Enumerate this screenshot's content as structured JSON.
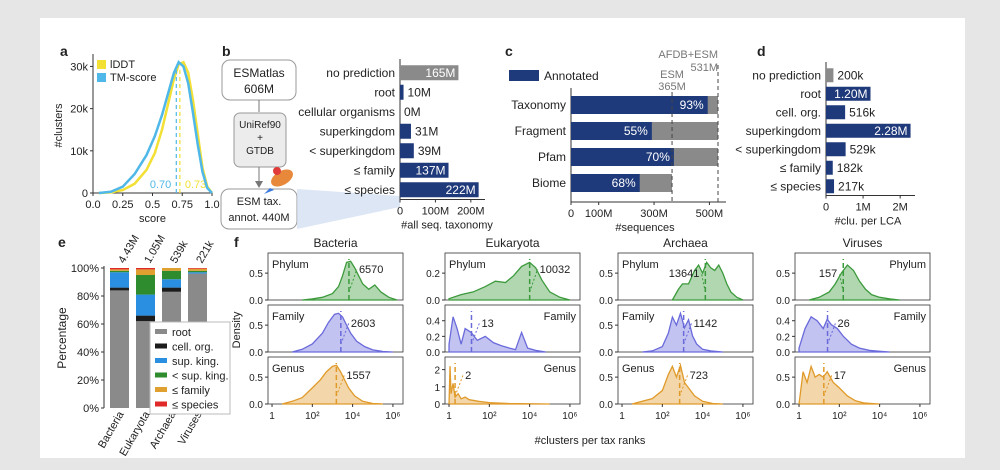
{
  "panel_letters": {
    "a": "a",
    "b": "b",
    "c": "c",
    "d": "d",
    "e": "e",
    "f": "f"
  },
  "colors": {
    "lddt": "#f2e034",
    "tm": "#4fb8e8",
    "navy": "#1f3a7a",
    "grey": "#8a8a8a",
    "green": "#3c9a3c",
    "purple": "#6a6adb",
    "orange": "#e09a2a",
    "root": "#8a8a8a",
    "cellorg": "#1c1c1c",
    "supking": "#2a8fe0",
    "ltsupking": "#2e8b2e",
    "family": "#e0a030",
    "species": "#e02a2a"
  },
  "chart_data": [
    {
      "id": "a",
      "type": "line",
      "title": "",
      "xlabel": "score",
      "ylabel": "#clusters",
      "xlim": [
        0,
        1
      ],
      "ylim": [
        0,
        32000
      ],
      "xticks": [
        "0.0",
        "0.25",
        "0.5",
        "0.75",
        "1.0"
      ],
      "yticks": [
        "0",
        "10k",
        "20k",
        "30k"
      ],
      "series": [
        {
          "name": "lDDT",
          "color_key": "lddt",
          "median": 0.73,
          "median_label": "0.73",
          "x": [
            0.05,
            0.15,
            0.25,
            0.35,
            0.45,
            0.52,
            0.58,
            0.63,
            0.68,
            0.72,
            0.76,
            0.8,
            0.84,
            0.88,
            0.92,
            0.96,
            1.0
          ],
          "y": [
            0,
            150,
            700,
            2200,
            5500,
            9500,
            15000,
            21000,
            27000,
            30500,
            31000,
            28500,
            22000,
            14000,
            6000,
            1500,
            0
          ]
        },
        {
          "name": "TM-score",
          "color_key": "tm",
          "median": 0.7,
          "median_label": "0.70",
          "x": [
            0.05,
            0.15,
            0.25,
            0.35,
            0.45,
            0.52,
            0.58,
            0.63,
            0.68,
            0.72,
            0.76,
            0.8,
            0.84,
            0.88,
            0.92,
            0.96,
            1.0
          ],
          "y": [
            0,
            300,
            1500,
            4500,
            9000,
            13500,
            18500,
            23500,
            28500,
            31000,
            30000,
            26000,
            19000,
            11500,
            5000,
            1200,
            0
          ]
        }
      ]
    },
    {
      "id": "b",
      "type": "bar",
      "title": "",
      "xlabel": "#all seq. taxonomy",
      "xlim": [
        0,
        240000000
      ],
      "xticks": [
        "0",
        "100M",
        "200M"
      ],
      "categories": [
        "no prediction",
        "root",
        "cellular organisms",
        "superkingdom",
        "< superkingdom",
        "≤ family",
        "≤ species"
      ],
      "values": [
        165000000,
        10000000,
        0,
        31000000,
        39000000,
        137000000,
        222000000
      ],
      "value_labels": [
        "165M",
        "10M",
        "0M",
        "31M",
        "39M",
        "137M",
        "222M"
      ],
      "bar_color_keys": [
        "grey",
        "navy",
        "navy",
        "navy",
        "navy",
        "navy",
        "navy"
      ],
      "flowchart": {
        "top_label": "ESMatlas",
        "top_value": "606M",
        "mid_label1": "UniRef90",
        "mid_plus": "+",
        "mid_label2": "GTDB",
        "bottom_label": "ESM tax.",
        "bottom_value": "annot. 440M"
      }
    },
    {
      "id": "c",
      "type": "bar",
      "title": "",
      "xlabel": "#sequences",
      "xlim": [
        0,
        560000000
      ],
      "xticks": [
        "0",
        "100M",
        "300M",
        "500M"
      ],
      "legend": "Annotated",
      "categories": [
        "Taxonomy",
        "Fragment",
        "Pfam",
        "Biome"
      ],
      "totals": [
        531000000,
        531000000,
        531000000,
        365000000
      ],
      "annotated_pct": [
        93,
        55,
        70,
        68
      ],
      "value_labels": [
        "93%",
        "55%",
        "70%",
        "68%"
      ],
      "reference_lines": [
        {
          "label": "ESM",
          "value_label": "365M",
          "value": 365000000
        },
        {
          "label": "AFDB+ESM",
          "value_label": "531M",
          "value": 531000000
        }
      ]
    },
    {
      "id": "d",
      "type": "bar",
      "title": "",
      "xlabel": "#clu. per LCA",
      "xlim": [
        0,
        2400000
      ],
      "xticks": [
        "0",
        "1M",
        "2M"
      ],
      "categories": [
        "no prediction",
        "root",
        "cell. org.",
        "superkingdom",
        "< superkingdom",
        "≤ family",
        "≤ species"
      ],
      "values": [
        200000,
        1200000,
        516000,
        2280000,
        529000,
        182000,
        217000
      ],
      "value_labels": [
        "200k",
        "1.20M",
        "516k",
        "2.28M",
        "529k",
        "182k",
        "217k"
      ],
      "bar_color_keys": [
        "grey",
        "navy",
        "navy",
        "navy",
        "navy",
        "navy",
        "navy"
      ]
    },
    {
      "id": "e",
      "type": "bar",
      "title": "",
      "ylabel": "Percentage",
      "ylim": [
        0,
        100
      ],
      "yticks": [
        "0%",
        "20%",
        "40%",
        "60%",
        "80%",
        "100%"
      ],
      "categories": [
        "Bacteria",
        "Eukaryota",
        "Archaea",
        "Viruses"
      ],
      "totals": [
        "4.43M",
        "1.05M",
        "539k",
        "221k"
      ],
      "series": [
        {
          "name": "root",
          "color_key": "root",
          "values": [
            84,
            62,
            83,
            96
          ]
        },
        {
          "name": "cell. org.",
          "color_key": "cellorg",
          "values": [
            2,
            4,
            3,
            0
          ]
        },
        {
          "name": "sup. king.",
          "color_key": "supking",
          "values": [
            11,
            15,
            6,
            1
          ]
        },
        {
          "name": "< sup. king.",
          "color_key": "ltsupking",
          "values": [
            1,
            14,
            6,
            1
          ]
        },
        {
          "name": "≤ family",
          "color_key": "family",
          "values": [
            1,
            4,
            2,
            1.5
          ]
        },
        {
          "name": "≤ species",
          "color_key": "species",
          "values": [
            1,
            1,
            0,
            0.5
          ]
        }
      ]
    },
    {
      "id": "f",
      "type": "area",
      "xlabel": "#clusters per tax ranks",
      "ylabel": "Density",
      "xscale": "log",
      "xlim_log10": [
        -0.2,
        6.5
      ],
      "xticks": [
        "1",
        "10²",
        "10⁴",
        "10⁶"
      ],
      "columns": [
        {
          "title": "Bacteria",
          "rows": [
            {
              "rank": "Phylum",
              "color_key": "green",
              "median": 6570,
              "median_label": "6570",
              "yticks": [
                "0.0",
                "0.5"
              ],
              "ymax": 0.8,
              "x": [
                1.5,
                2,
                2.5,
                3,
                3.3,
                3.5,
                3.7,
                3.9,
                4.1,
                4.3,
                4.5,
                4.8,
                5.1,
                5.4,
                5.8,
                6.2
              ],
              "y": [
                0,
                0.02,
                0.05,
                0.12,
                0.25,
                0.45,
                0.7,
                0.72,
                0.6,
                0.45,
                0.3,
                0.2,
                0.28,
                0.15,
                0.05,
                0
              ]
            },
            {
              "rank": "Family",
              "color_key": "purple",
              "median": 2603,
              "median_label": "2603",
              "yticks": [
                "0.0",
                "0.5"
              ],
              "ymax": 0.8,
              "x": [
                1,
                1.5,
                2,
                2.5,
                2.8,
                3.1,
                3.3,
                3.5,
                3.7,
                3.9,
                4.2,
                4.6,
                5,
                5.5,
                6
              ],
              "y": [
                0,
                0.05,
                0.15,
                0.35,
                0.55,
                0.7,
                0.72,
                0.65,
                0.5,
                0.35,
                0.2,
                0.1,
                0.04,
                0.01,
                0
              ]
            },
            {
              "rank": "Genus",
              "color_key": "orange",
              "median": 1557,
              "median_label": "1557",
              "yticks": [
                "0.0",
                "0.5"
              ],
              "ymax": 0.8,
              "x": [
                0.5,
                1,
                1.5,
                2,
                2.4,
                2.7,
                3,
                3.2,
                3.4,
                3.6,
                3.8,
                4.1,
                4.5,
                5,
                5.5
              ],
              "y": [
                0,
                0.05,
                0.12,
                0.3,
                0.45,
                0.6,
                0.7,
                0.72,
                0.6,
                0.45,
                0.3,
                0.15,
                0.05,
                0.01,
                0
              ]
            }
          ]
        },
        {
          "title": "Eukaryota",
          "rows": [
            {
              "rank": "Phylum",
              "color_key": "green",
              "median": 10032,
              "median_label": "10032",
              "yticks": [
                "0.0",
                "0.2"
              ],
              "ymax": 0.32,
              "x": [
                0,
                0.6,
                1.2,
                1.8,
                2.3,
                2.8,
                3.2,
                3.6,
                4,
                4.3,
                4.6,
                5,
                5.5,
                6
              ],
              "y": [
                0.01,
                0.04,
                0.06,
                0.1,
                0.14,
                0.13,
                0.18,
                0.25,
                0.28,
                0.24,
                0.15,
                0.06,
                0.02,
                0
              ]
            },
            {
              "rank": "Family",
              "color_key": "purple",
              "median": 13,
              "median_label": "13",
              "yticks": [
                "0.0",
                "0.2",
                "0.4"
              ],
              "ymax": 0.55,
              "x": [
                0,
                0.2,
                0.4,
                0.6,
                0.8,
                1.1,
                1.4,
                1.8,
                2.2,
                2.6,
                3,
                3.3,
                3.6,
                3.9,
                4.3,
                4.8
              ],
              "y": [
                0.1,
                0.45,
                0.3,
                0.1,
                0.3,
                0.25,
                0.15,
                0.2,
                0.12,
                0.08,
                0.05,
                0.03,
                0.25,
                0.05,
                0.02,
                0
              ]
            },
            {
              "rank": "Genus",
              "color_key": "orange",
              "median": 2,
              "median_label": "2",
              "yticks": [
                "0",
                "1",
                "2"
              ],
              "ymax": 2.5,
              "x": [
                0,
                0.05,
                0.1,
                0.2,
                0.3,
                0.45,
                0.6,
                0.8,
                1,
                1.5,
                2,
                3,
                4,
                5
              ],
              "y": [
                0,
                2.2,
                0.6,
                1.2,
                0.4,
                0.6,
                0.3,
                0.4,
                0.25,
                0.15,
                0.08,
                0.03,
                0.01,
                0
              ]
            }
          ]
        },
        {
          "title": "Archaea",
          "rows": [
            {
              "rank": "Phylum",
              "color_key": "green",
              "median": 13641,
              "median_label": "13641",
              "yticks": [
                "0.0",
                "0.5"
              ],
              "ymax": 0.8,
              "x": [
                2.5,
                2.8,
                3,
                3.3,
                3.6,
                3.8,
                4,
                4.2,
                4.4,
                4.6,
                4.8,
                5,
                5.2,
                5.4,
                5.7,
                6
              ],
              "y": [
                0,
                0.2,
                0.3,
                0.3,
                0.55,
                0.65,
                0.5,
                0.7,
                0.6,
                0.55,
                0.65,
                0.5,
                0.3,
                0.15,
                0.05,
                0
              ]
            },
            {
              "rank": "Family",
              "color_key": "purple",
              "median": 1142,
              "median_label": "1142",
              "yticks": [
                "0.0",
                "0.5"
              ],
              "ymax": 0.8,
              "x": [
                1,
                1.5,
                2,
                2.3,
                2.5,
                2.7,
                2.9,
                3.1,
                3.3,
                3.5,
                3.7,
                4,
                4.4,
                5
              ],
              "y": [
                0,
                0.02,
                0.1,
                0.35,
                0.65,
                0.5,
                0.72,
                0.45,
                0.6,
                0.3,
                0.15,
                0.05,
                0.02,
                0
              ]
            },
            {
              "rank": "Genus",
              "color_key": "orange",
              "median": 723,
              "median_label": "723",
              "yticks": [
                "0.0",
                "0.5"
              ],
              "ymax": 0.8,
              "x": [
                0.5,
                1,
                1.5,
                2,
                2.3,
                2.5,
                2.7,
                2.9,
                3.1,
                3.3,
                3.6,
                4,
                4.5,
                5
              ],
              "y": [
                0,
                0.05,
                0.1,
                0.25,
                0.55,
                0.7,
                0.5,
                0.72,
                0.4,
                0.3,
                0.15,
                0.05,
                0.01,
                0
              ]
            }
          ]
        },
        {
          "title": "Viruses",
          "rows": [
            {
              "rank": "Phylum",
              "color_key": "green",
              "median": 157,
              "median_label": "157",
              "yticks": [
                "0.0",
                "0.5"
              ],
              "ymax": 0.8,
              "x": [
                0.5,
                1,
                1.5,
                1.8,
                2.1,
                2.4,
                2.7,
                3,
                3.3,
                3.6,
                4,
                4.5,
                5
              ],
              "y": [
                0,
                0.05,
                0.15,
                0.3,
                0.5,
                0.65,
                0.55,
                0.35,
                0.2,
                0.1,
                0.05,
                0.02,
                0
              ]
            },
            {
              "rank": "Family",
              "color_key": "purple",
              "median": 26,
              "median_label": "26",
              "yticks": [
                "0.0",
                "0.2",
                "0.4"
              ],
              "ymax": 0.55,
              "x": [
                0,
                0.3,
                0.6,
                0.9,
                1.2,
                1.4,
                1.6,
                1.9,
                2.2,
                2.6,
                3,
                3.5,
                4,
                4.5
              ],
              "y": [
                0.05,
                0.3,
                0.45,
                0.4,
                0.3,
                0.42,
                0.35,
                0.3,
                0.2,
                0.1,
                0.05,
                0.02,
                0.01,
                0
              ]
            },
            {
              "rank": "Genus",
              "color_key": "orange",
              "median": 17,
              "median_label": "17",
              "yticks": [
                "0.0",
                "0.5"
              ],
              "ymax": 0.8,
              "x": [
                0,
                0.2,
                0.4,
                0.6,
                0.8,
                1,
                1.2,
                1.4,
                1.7,
                2,
                2.4,
                2.8,
                3.2,
                3.6,
                4
              ],
              "y": [
                0,
                0.6,
                0.4,
                0.7,
                0.5,
                0.55,
                0.5,
                0.6,
                0.4,
                0.3,
                0.15,
                0.06,
                0.02,
                0.01,
                0
              ]
            }
          ]
        }
      ]
    }
  ]
}
